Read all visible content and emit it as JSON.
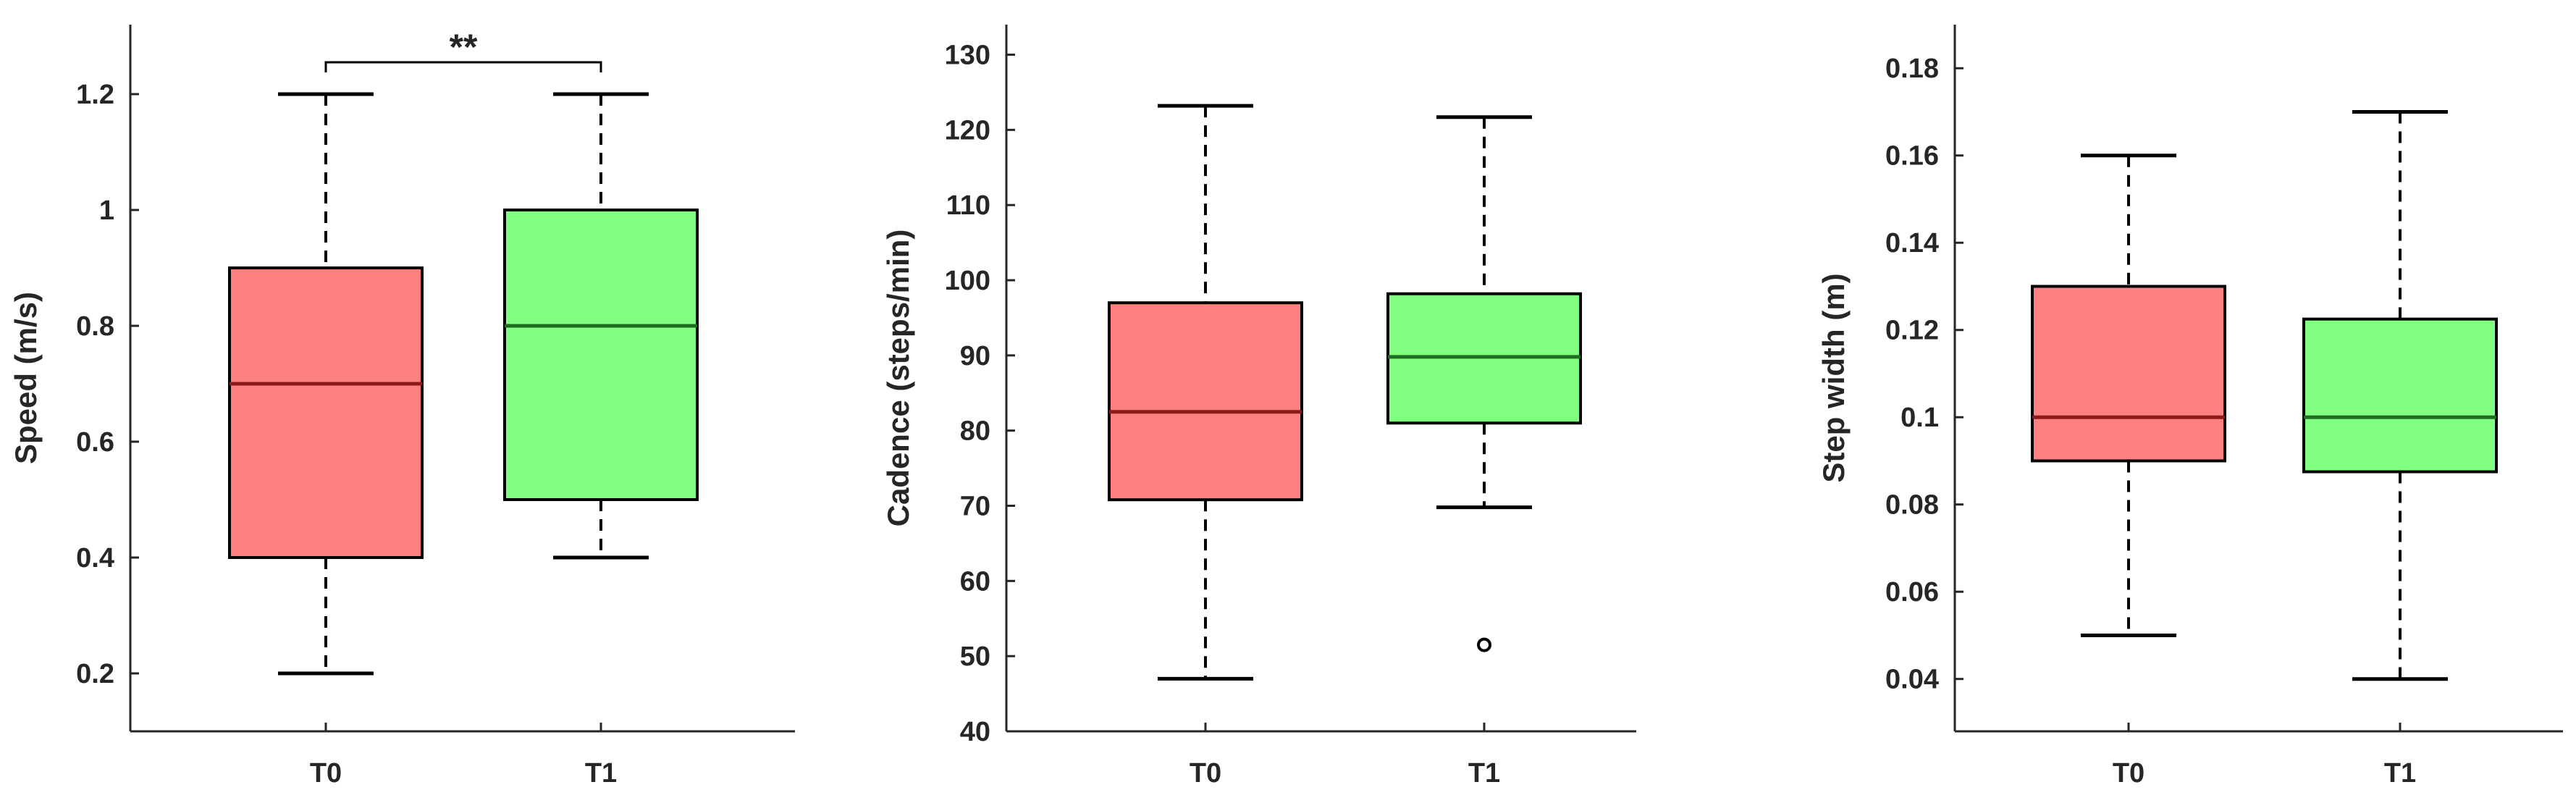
{
  "figure": {
    "panel_count": 3
  },
  "colors": {
    "T0_fill": "#ff8080",
    "T1_fill": "#80ff80",
    "T0_median": "#8b1a1a",
    "T1_median": "#1f6b1f",
    "axis": "#262626",
    "stroke": "#000000"
  },
  "chart_data": [
    {
      "type": "box",
      "title": "",
      "ylabel": "Speed (m/s)",
      "xlabel": "",
      "categories": [
        "T0",
        "T1"
      ],
      "ylim": [
        0.1,
        1.32
      ],
      "yticks": [
        0.2,
        0.4,
        0.6,
        0.8,
        1.0,
        1.2
      ],
      "ytick_labels": [
        "0.2",
        "0.4",
        "0.6",
        "0.8",
        "1",
        "1.2"
      ],
      "boxes": [
        {
          "category": "T0",
          "whisker_low": 0.2,
          "q1": 0.4,
          "median": 0.7,
          "q3": 0.9,
          "whisker_high": 1.2,
          "outliers": []
        },
        {
          "category": "T1",
          "whisker_low": 0.4,
          "q1": 0.5,
          "median": 0.8,
          "q3": 1.0,
          "whisker_high": 1.2,
          "outliers": []
        }
      ],
      "significance": {
        "between": [
          "T0",
          "T1"
        ],
        "label": "**",
        "y": 1.255
      },
      "grid": false,
      "legend": "none"
    },
    {
      "type": "box",
      "title": "",
      "ylabel": "Cadence (steps/min)",
      "xlabel": "",
      "categories": [
        "T0",
        "T1"
      ],
      "ylim": [
        40,
        134
      ],
      "yticks": [
        40,
        50,
        60,
        70,
        80,
        90,
        100,
        110,
        120,
        130
      ],
      "ytick_labels": [
        "40",
        "50",
        "60",
        "70",
        "80",
        "90",
        "100",
        "110",
        "120",
        "130"
      ],
      "boxes": [
        {
          "category": "T0",
          "whisker_low": 47,
          "q1": 70.8,
          "median": 82.5,
          "q3": 97,
          "whisker_high": 123.2,
          "outliers": []
        },
        {
          "category": "T1",
          "whisker_low": 69.8,
          "q1": 81,
          "median": 89.8,
          "q3": 98.2,
          "whisker_high": 121.7,
          "outliers": [
            51.5
          ]
        }
      ],
      "grid": false,
      "legend": "none"
    },
    {
      "type": "box",
      "title": "",
      "ylabel": "Step width (m)",
      "xlabel": "",
      "categories": [
        "T0",
        "T1"
      ],
      "ylim": [
        0.028,
        0.19
      ],
      "yticks": [
        0.04,
        0.06,
        0.08,
        0.1,
        0.12,
        0.14,
        0.16,
        0.18
      ],
      "ytick_labels": [
        "0.04",
        "0.06",
        "0.08",
        "0.1",
        "0.12",
        "0.14",
        "0.16",
        "0.18"
      ],
      "boxes": [
        {
          "category": "T0",
          "whisker_low": 0.05,
          "q1": 0.09,
          "median": 0.1,
          "q3": 0.13,
          "whisker_high": 0.16,
          "outliers": []
        },
        {
          "category": "T1",
          "whisker_low": 0.04,
          "q1": 0.0875,
          "median": 0.1,
          "q3": 0.1225,
          "whisker_high": 0.17,
          "outliers": []
        }
      ],
      "grid": false,
      "legend": "none"
    }
  ]
}
